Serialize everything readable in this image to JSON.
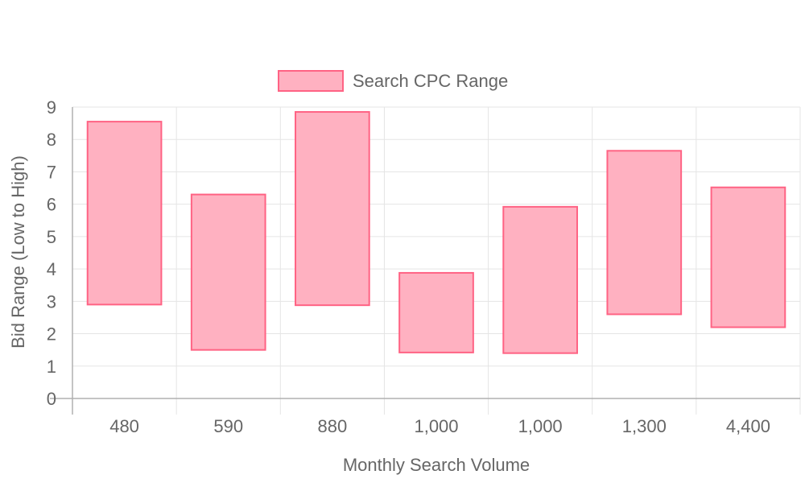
{
  "chart_data": {
    "type": "bar",
    "subtype": "floating-range",
    "categories": [
      "480",
      "590",
      "880",
      "1,000",
      "1,000",
      "1,300",
      "4,400"
    ],
    "series": [
      {
        "name": "Search CPC Range",
        "ranges": [
          [
            2.9,
            8.55
          ],
          [
            1.5,
            6.3
          ],
          [
            2.88,
            8.85
          ],
          [
            1.42,
            3.88
          ],
          [
            1.4,
            5.92
          ],
          [
            2.6,
            7.65
          ],
          [
            2.2,
            6.52
          ]
        ],
        "fill": "#ffb1c1",
        "stroke": "#ff6384"
      }
    ],
    "xlabel": "Monthly Search Volume",
    "ylabel": "Bid Range (Low to High)",
    "ylim": [
      0,
      9
    ],
    "yticks": [
      "0",
      "1",
      "2",
      "3",
      "4",
      "5",
      "6",
      "7",
      "8",
      "9"
    ],
    "grid": true,
    "legend_position": "top"
  },
  "colors": {
    "grid": "#e5e5e5",
    "axis": "#b0b0b0",
    "text": "#666666"
  }
}
